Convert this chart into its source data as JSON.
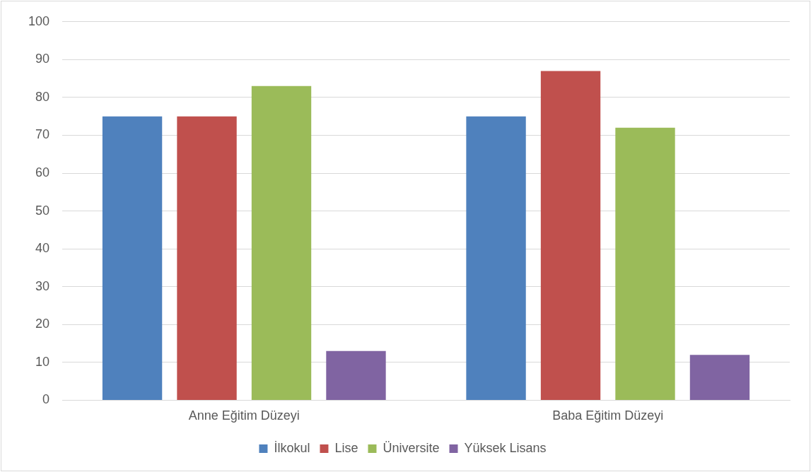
{
  "chart_data": {
    "type": "bar",
    "categories": [
      "Anne Eğitim Düzeyi",
      "Baba Eğitim Düzeyi"
    ],
    "series": [
      {
        "name": "İlkokul",
        "color": "#4f81bd",
        "values": [
          75,
          75
        ]
      },
      {
        "name": "Lise",
        "color": "#c0504d",
        "values": [
          75,
          87
        ]
      },
      {
        "name": "Üniversite",
        "color": "#9bbb59",
        "values": [
          83,
          72
        ]
      },
      {
        "name": "Yüksek Lisans",
        "color": "#8064a2",
        "values": [
          13,
          12
        ]
      }
    ],
    "ylim": [
      0,
      100
    ],
    "yticks": [
      0,
      10,
      20,
      30,
      40,
      50,
      60,
      70,
      80,
      90,
      100
    ],
    "grid": "y",
    "legend": "bottom"
  }
}
